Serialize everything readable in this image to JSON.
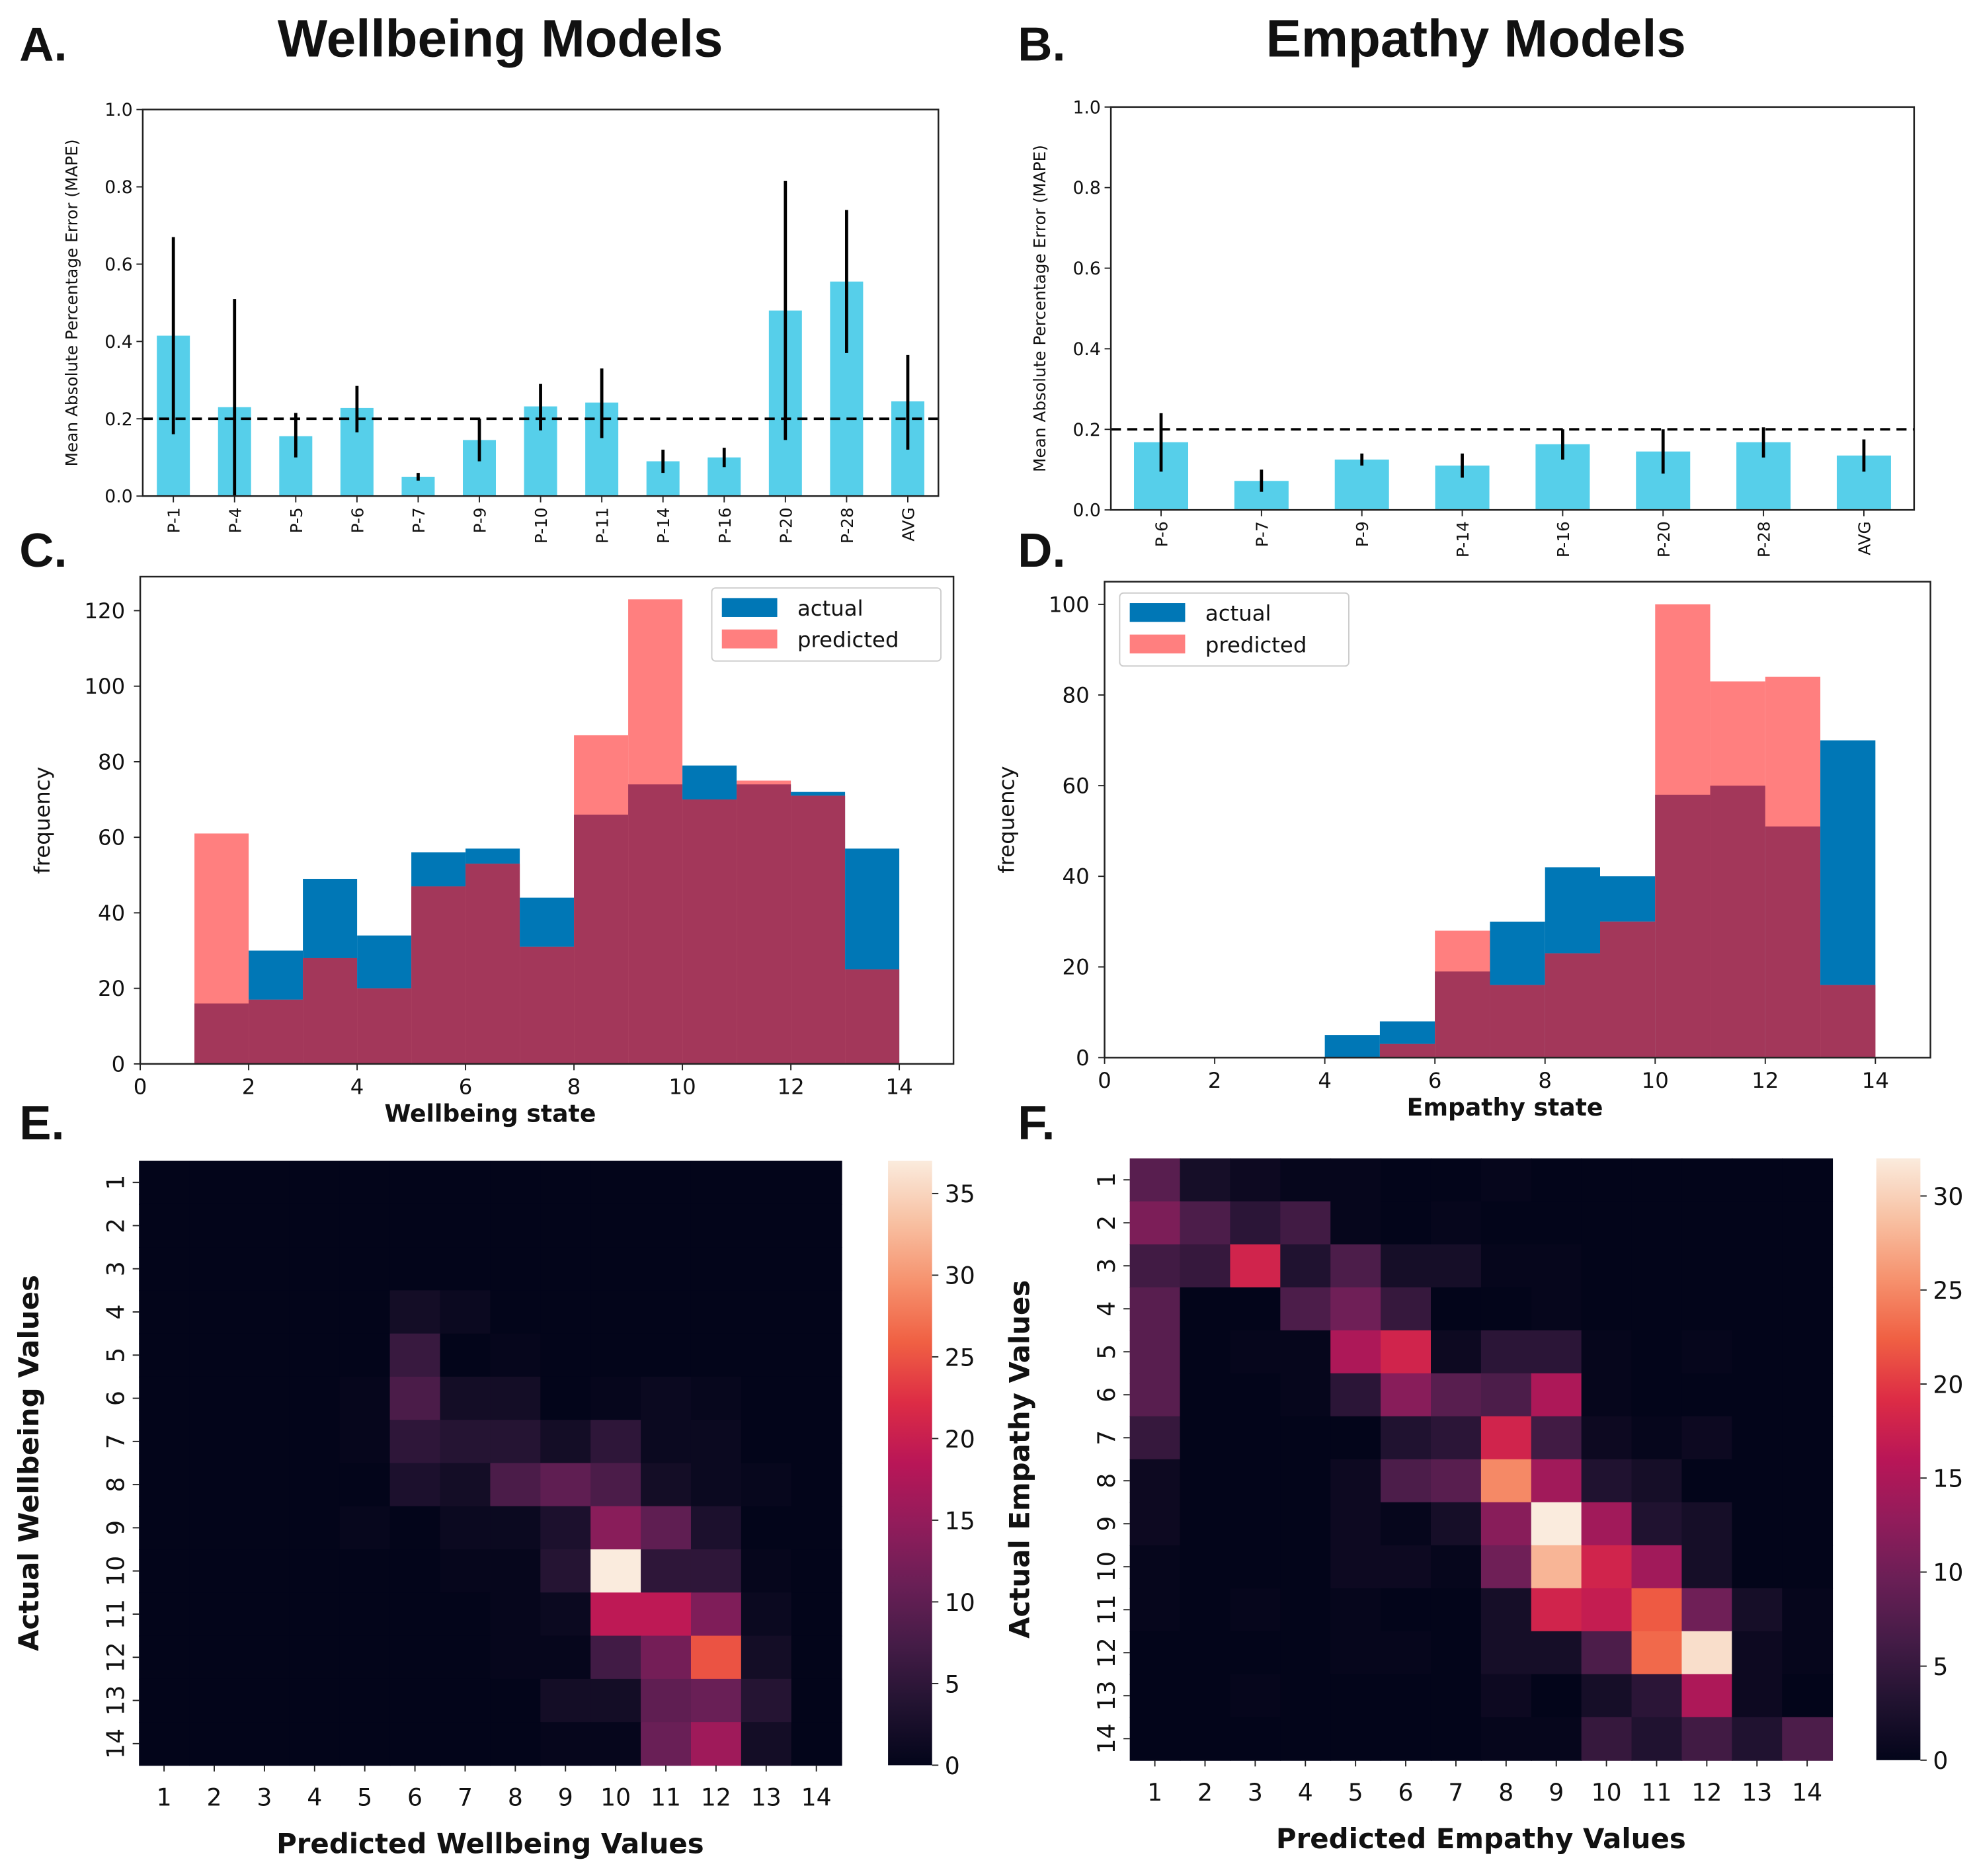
{
  "panel_labels": [
    "A.",
    "B.",
    "C.",
    "D.",
    "E.",
    "F."
  ],
  "chart_data": [
    {
      "type": "bar",
      "title": "Wellbeing Models",
      "ylabel": "Mean Absolute Percentage Error (MAPE)",
      "categories": [
        "P-1",
        "P-4",
        "P-5",
        "P-6",
        "P-7",
        "P-9",
        "P-10",
        "P-11",
        "P-14",
        "P-16",
        "P-20",
        "P-28",
        "AVG"
      ],
      "values": [
        0.415,
        0.23,
        0.155,
        0.228,
        0.05,
        0.145,
        0.232,
        0.242,
        0.09,
        0.1,
        0.48,
        0.555,
        0.245
      ],
      "err_low": [
        0.16,
        0.0,
        0.1,
        0.165,
        0.04,
        0.09,
        0.17,
        0.15,
        0.06,
        0.075,
        0.145,
        0.37,
        0.12
      ],
      "err_high": [
        0.67,
        0.51,
        0.215,
        0.285,
        0.06,
        0.2,
        0.29,
        0.33,
        0.12,
        0.125,
        0.815,
        0.74,
        0.365
      ],
      "ylim": [
        0,
        1.0
      ],
      "yticks": [
        "0.0",
        "0.2",
        "0.4",
        "0.6",
        "0.8",
        "1.0"
      ],
      "reference_line": 0.2,
      "color": "#56cfea"
    },
    {
      "type": "bar",
      "title": "Empathy Models",
      "ylabel": "Mean Absolute Percentage Error (MAPE)",
      "categories": [
        "P-6",
        "P-7",
        "P-9",
        "P-14",
        "P-16",
        "P-20",
        "P-28",
        "AVG"
      ],
      "values": [
        0.168,
        0.072,
        0.125,
        0.11,
        0.163,
        0.145,
        0.168,
        0.135
      ],
      "err_low": [
        0.095,
        0.045,
        0.11,
        0.08,
        0.125,
        0.09,
        0.13,
        0.095
      ],
      "err_high": [
        0.24,
        0.1,
        0.14,
        0.14,
        0.2,
        0.2,
        0.205,
        0.175
      ],
      "ylim": [
        0,
        1.0
      ],
      "yticks": [
        "0.0",
        "0.2",
        "0.4",
        "0.6",
        "0.8",
        "1.0"
      ],
      "reference_line": 0.2,
      "color": "#56cfea"
    },
    {
      "type": "bar",
      "subtype": "histogram",
      "xlabel": "Wellbeing state",
      "ylabel": "frequency",
      "bin_edges": [
        1,
        2,
        3,
        4,
        5,
        6,
        7,
        8,
        9,
        10,
        11,
        12,
        13,
        14
      ],
      "series": [
        {
          "name": "actual",
          "color": "#0077b6",
          "values": [
            16,
            30,
            49,
            34,
            56,
            57,
            44,
            66,
            74,
            79,
            74,
            72,
            57
          ]
        },
        {
          "name": "predicted",
          "color": "#ff7f7f",
          "values": [
            61,
            17,
            28,
            20,
            47,
            53,
            31,
            87,
            123,
            70,
            75,
            71,
            25
          ]
        }
      ],
      "overlap_color": "#a3375a",
      "xlim": [
        0,
        15
      ],
      "ylim": [
        0,
        129
      ],
      "xticks": [
        "0",
        "2",
        "4",
        "6",
        "8",
        "10",
        "12",
        "14"
      ],
      "yticks": [
        "0",
        "20",
        "40",
        "60",
        "80",
        "100",
        "120"
      ],
      "legend": "top-right"
    },
    {
      "type": "bar",
      "subtype": "histogram",
      "xlabel": "Empathy state",
      "ylabel": "frequency",
      "bin_edges": [
        4,
        5,
        6,
        7,
        8,
        9,
        10,
        11,
        12,
        13,
        14
      ],
      "series": [
        {
          "name": "actual",
          "color": "#0077b6",
          "values": [
            5,
            8,
            19,
            30,
            42,
            40,
            58,
            60,
            51,
            70
          ]
        },
        {
          "name": "predicted",
          "color": "#ff7f7f",
          "values": [
            0,
            3,
            28,
            16,
            23,
            30,
            100,
            83,
            84,
            16
          ]
        }
      ],
      "overlap_color": "#a3375a",
      "xlim": [
        0,
        15
      ],
      "ylim": [
        0,
        105
      ],
      "xticks": [
        "0",
        "2",
        "4",
        "6",
        "8",
        "10",
        "12",
        "14"
      ],
      "yticks": [
        "0",
        "20",
        "40",
        "60",
        "80",
        "100"
      ],
      "legend": "top-left"
    },
    {
      "type": "heatmap",
      "xlabel": "Predicted Wellbeing Values",
      "ylabel": "Actual Wellbeing Values",
      "xticks": [
        "1",
        "2",
        "3",
        "4",
        "5",
        "6",
        "7",
        "8",
        "9",
        "10",
        "11",
        "12",
        "13",
        "14"
      ],
      "yticks": [
        "1",
        "2",
        "3",
        "4",
        "5",
        "6",
        "7",
        "8",
        "9",
        "10",
        "11",
        "12",
        "13",
        "14"
      ],
      "colormap": "rocket",
      "vmin": 0,
      "vmax": 37,
      "colorbar_ticks": [
        "0",
        "5",
        "10",
        "15",
        "20",
        "25",
        "30",
        "35"
      ],
      "matrix": [
        [
          0,
          0,
          0,
          0,
          0,
          0,
          0,
          0,
          0,
          0,
          0,
          0,
          0,
          0
        ],
        [
          0,
          0,
          0,
          0,
          0,
          0,
          0,
          0,
          0,
          0,
          0,
          0,
          0,
          0
        ],
        [
          0,
          0,
          0,
          0,
          0,
          0,
          0,
          0,
          0,
          0,
          0,
          0,
          0,
          0
        ],
        [
          0,
          0,
          0,
          0,
          0,
          2,
          1,
          0,
          0,
          0,
          0,
          0,
          0,
          0
        ],
        [
          0,
          0,
          0,
          0,
          0,
          6,
          0,
          0.3,
          0,
          0,
          0,
          0,
          0,
          0
        ],
        [
          0,
          0,
          0,
          0,
          0.3,
          8,
          2,
          2,
          0,
          0.3,
          1,
          0.5,
          0,
          0
        ],
        [
          0,
          0,
          0,
          0,
          0.3,
          5,
          4,
          4,
          2,
          5,
          1,
          1,
          0,
          0
        ],
        [
          0,
          0,
          0,
          0,
          0,
          3,
          2,
          8,
          10,
          8,
          2,
          1,
          0.5,
          0
        ],
        [
          0,
          0,
          0,
          0,
          0.5,
          0,
          1,
          1,
          3,
          14,
          10,
          3,
          0,
          0
        ],
        [
          0,
          0,
          0,
          0,
          0,
          0,
          0.3,
          0.3,
          4,
          37,
          5,
          5,
          0.3,
          0
        ],
        [
          0,
          0,
          0,
          0,
          0,
          0,
          0,
          0.3,
          1,
          19,
          19,
          13,
          1,
          0
        ],
        [
          0,
          0,
          0,
          0,
          0,
          0,
          0,
          0.3,
          0.3,
          7,
          12,
          25,
          2,
          0
        ],
        [
          0,
          0,
          0,
          0,
          0,
          0,
          0,
          0,
          2,
          2,
          10,
          11,
          4,
          0
        ],
        [
          0,
          0,
          0,
          0,
          0,
          0,
          0,
          0,
          0.3,
          0.3,
          11,
          16,
          2,
          0
        ]
      ]
    },
    {
      "type": "heatmap",
      "xlabel": "Predicted Empathy Values",
      "ylabel": "Actual Empathy Values",
      "xticks": [
        "1",
        "2",
        "3",
        "4",
        "5",
        "6",
        "7",
        "8",
        "9",
        "10",
        "11",
        "12",
        "13",
        "14"
      ],
      "yticks": [
        "1",
        "2",
        "3",
        "4",
        "5",
        "6",
        "7",
        "8",
        "9",
        "10",
        "11",
        "12",
        "13",
        "14"
      ],
      "colormap": "rocket",
      "vmin": 0,
      "vmax": 32,
      "colorbar_ticks": [
        "0",
        "5",
        "10",
        "15",
        "20",
        "25",
        "30"
      ],
      "matrix": [
        [
          8,
          2,
          1,
          0.3,
          0.3,
          0,
          0,
          0.3,
          0,
          0,
          0,
          0,
          0,
          0
        ],
        [
          11,
          7,
          4,
          6,
          0.3,
          0,
          0.3,
          0,
          0,
          0,
          0,
          0,
          0,
          0
        ],
        [
          6,
          5,
          18,
          3,
          7,
          2,
          2,
          0.3,
          0.3,
          0,
          0,
          0,
          0,
          0
        ],
        [
          8,
          0,
          0,
          7,
          10,
          5,
          0,
          0,
          0.3,
          0,
          0,
          0,
          0,
          0
        ],
        [
          8,
          0,
          0.3,
          0.3,
          15,
          18,
          1,
          4,
          4,
          0.3,
          0,
          0.3,
          0,
          0
        ],
        [
          8,
          0,
          0,
          0.3,
          4,
          12,
          8,
          7,
          15,
          0.3,
          0,
          0,
          0,
          0
        ],
        [
          5,
          0,
          0,
          0,
          0,
          3,
          4,
          18,
          6,
          1,
          0.3,
          1,
          0,
          0
        ],
        [
          1,
          0,
          0,
          0,
          1,
          7,
          8,
          25,
          14,
          3,
          2,
          0,
          0,
          0
        ],
        [
          1,
          0,
          0,
          0,
          1,
          0.3,
          2,
          12,
          32,
          14,
          3,
          2,
          0,
          0
        ],
        [
          0.3,
          0,
          0,
          0,
          1,
          1,
          0.3,
          10,
          28,
          18,
          14,
          2,
          0,
          0
        ],
        [
          0.3,
          0,
          0.3,
          0,
          0.3,
          0,
          0,
          2,
          18,
          17,
          22,
          10,
          2,
          0.3
        ],
        [
          0,
          0,
          0,
          0,
          0.3,
          0.3,
          0,
          2,
          2,
          7,
          23,
          31,
          1,
          0.3
        ],
        [
          0,
          0,
          0.3,
          0,
          0,
          0,
          0,
          1,
          0,
          2,
          4,
          15,
          1,
          0
        ],
        [
          0,
          0,
          0,
          0,
          0,
          0,
          0,
          0.3,
          0.3,
          5,
          3,
          6,
          3,
          7
        ]
      ]
    }
  ]
}
